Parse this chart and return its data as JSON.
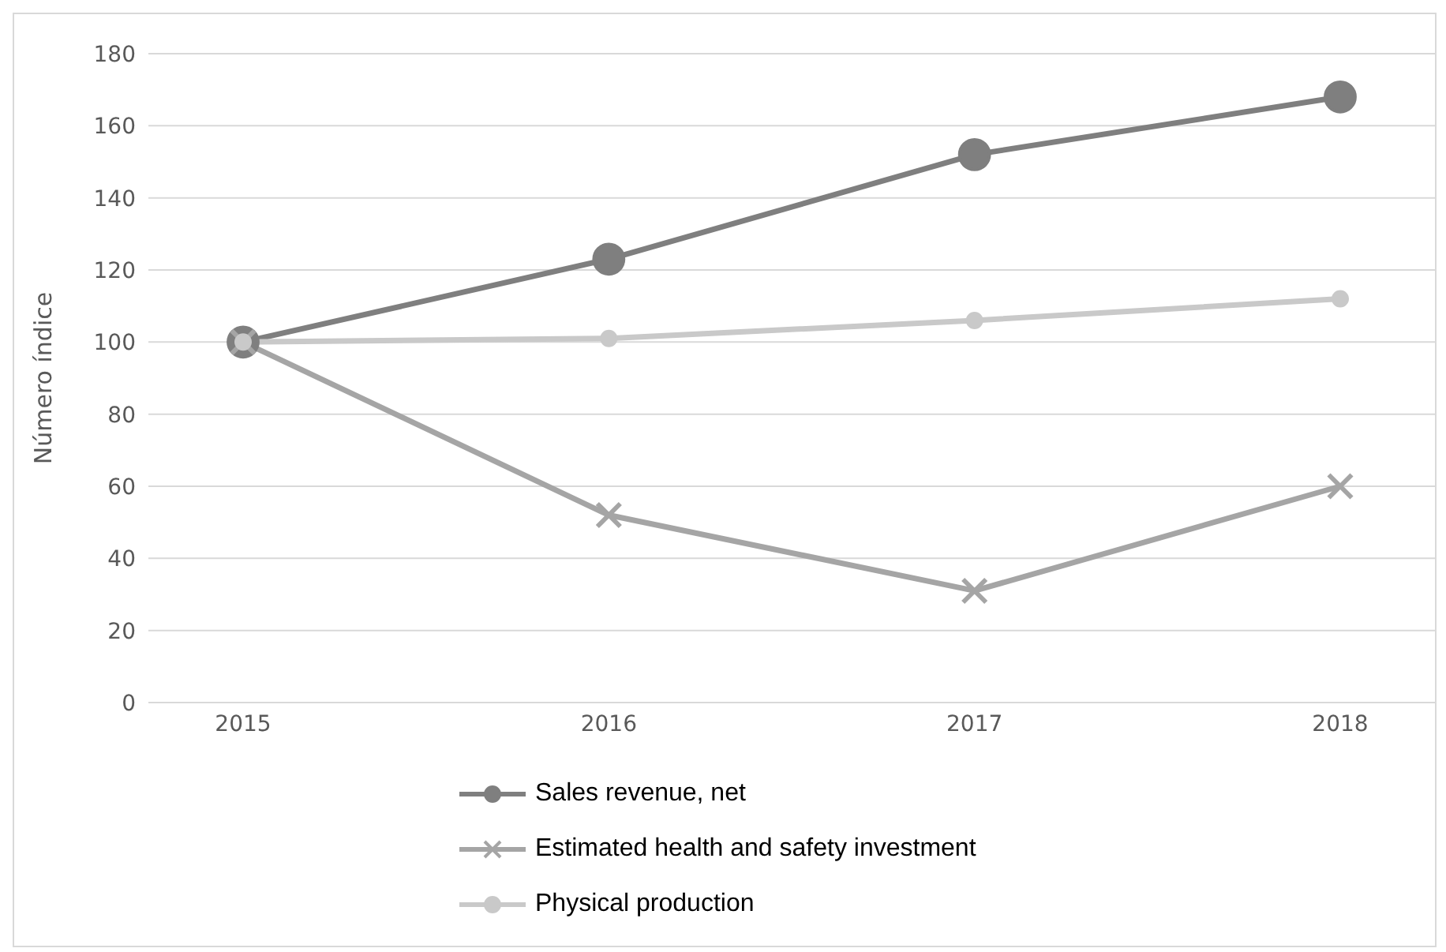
{
  "chart_data": {
    "type": "line",
    "ylabel": "Número índice",
    "categories": [
      "2015",
      "2016",
      "2017",
      "2018"
    ],
    "series": [
      {
        "name": "Sales revenue, net",
        "color": "#7f7f7f",
        "marker": "circle",
        "values": [
          100,
          123,
          152,
          168
        ]
      },
      {
        "name": "Estimated health and safety investment",
        "color": "#a5a5a5",
        "marker": "cross",
        "values": [
          100,
          52,
          31,
          60
        ]
      },
      {
        "name": "Physical production",
        "color": "#c9c9c9",
        "marker": "circle",
        "values": [
          100,
          101,
          106,
          112
        ]
      }
    ],
    "ylim": [
      0,
      180
    ],
    "yticks": [
      0,
      20,
      40,
      60,
      80,
      100,
      120,
      140,
      160,
      180
    ],
    "grid": "y",
    "legend": "bottom",
    "line_style": "solid"
  }
}
